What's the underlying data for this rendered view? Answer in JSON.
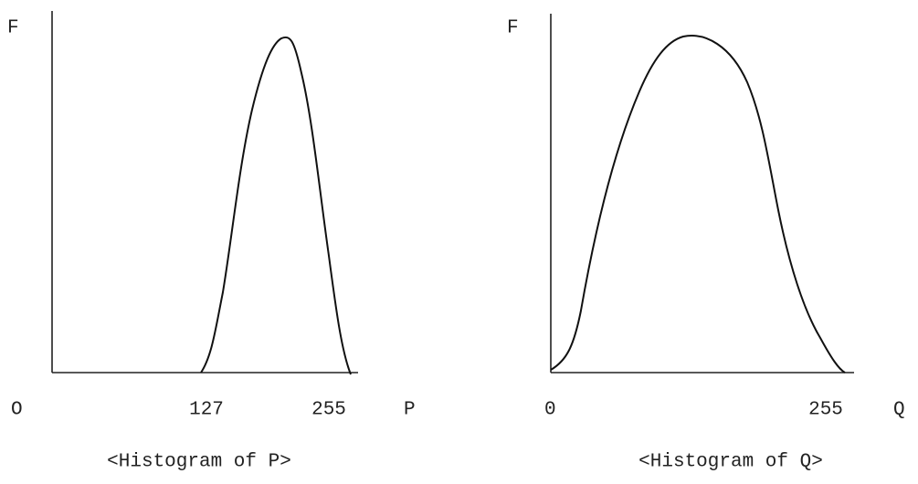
{
  "panels": [
    {
      "y_label": "F",
      "origin": "O",
      "ticks": [
        "127",
        "255"
      ],
      "x_label": "P",
      "caption": "<Histogram of P>"
    },
    {
      "y_label": "F",
      "origin": "0",
      "ticks": [
        "255"
      ],
      "x_label": "Q",
      "caption": "<Histogram of Q>"
    }
  ]
}
